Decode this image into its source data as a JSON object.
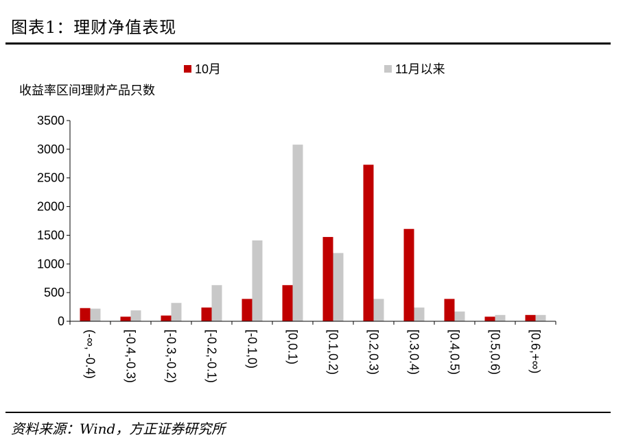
{
  "header": {
    "title": "图表1：理财净值表现"
  },
  "footer": {
    "source": "资料来源：Wind，方正证券研究所"
  },
  "chart_data": {
    "type": "bar",
    "ylabel": "收益率区间理财产品只数",
    "ylim": [
      0,
      3500
    ],
    "yticks": [
      0,
      500,
      1000,
      1500,
      2000,
      2500,
      3000,
      3500
    ],
    "categories": [
      "(-∞, -0.4)",
      "[-0.4,-0.3)",
      "[-0.3,-0.2)",
      "[-0.2,-0.1)",
      "[-0.1,0)",
      "[0,0.1)",
      "[0.1,0.2)",
      "[0.2,0.3)",
      "[0.3,0.4)",
      "[0.4,0.5)",
      "[0.5,0.6)",
      "[0.6,+∞)"
    ],
    "series": [
      {
        "name": "10月",
        "color": "#c00000",
        "values": [
          230,
          80,
          100,
          240,
          390,
          630,
          1470,
          2730,
          1610,
          390,
          80,
          110
        ]
      },
      {
        "name": "11月以来",
        "color": "#c8c8c8",
        "values": [
          220,
          190,
          320,
          630,
          1410,
          3080,
          1190,
          390,
          240,
          170,
          110,
          110
        ]
      }
    ],
    "legend_position": "top",
    "grid": false
  }
}
